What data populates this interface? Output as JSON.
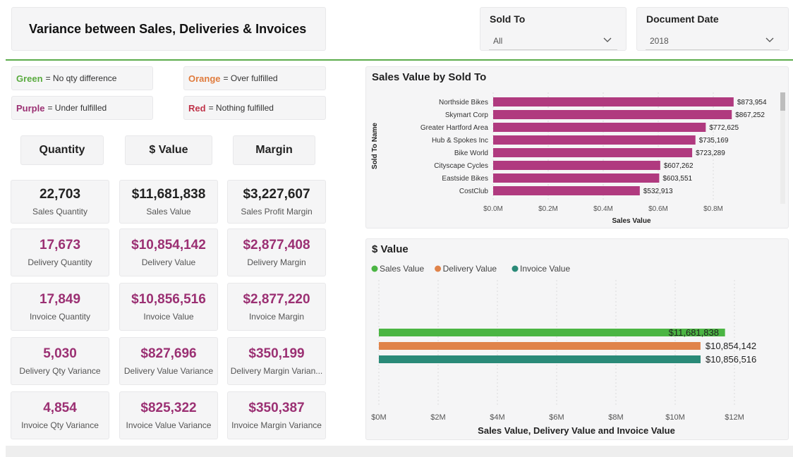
{
  "header": {
    "title": "Variance between Sales, Deliveries & Invoices"
  },
  "filters": {
    "sold_to": {
      "label": "Sold To",
      "value": "All"
    },
    "document_date": {
      "label": "Document Date",
      "value": "2018"
    }
  },
  "legend": [
    {
      "color_name": "Green",
      "text": "= No qty difference",
      "color": "#5aab3f"
    },
    {
      "color_name": "Orange",
      "text": "= Over fulfilled",
      "color": "#e07c3e"
    },
    {
      "color_name": "Purple",
      "text": "= Under fulfilled",
      "color": "#9b3073"
    },
    {
      "color_name": "Red",
      "text": "= Nothing fulfilled",
      "color": "#c0344a"
    }
  ],
  "column_headers": {
    "quantity": "Quantity",
    "value": "$ Value",
    "margin": "Margin"
  },
  "kpis": {
    "sales_quantity": {
      "value": "22,703",
      "label": "Sales Quantity"
    },
    "sales_value": {
      "value": "$11,681,838",
      "label": "Sales Value"
    },
    "sales_margin": {
      "value": "$3,227,607",
      "label": "Sales Profit Margin"
    },
    "delivery_quantity": {
      "value": "17,673",
      "label": "Delivery Quantity"
    },
    "delivery_value": {
      "value": "$10,854,142",
      "label": "Delivery Value"
    },
    "delivery_margin": {
      "value": "$2,877,408",
      "label": "Delivery Margin"
    },
    "invoice_quantity": {
      "value": "17,849",
      "label": "Invoice Quantity"
    },
    "invoice_value": {
      "value": "$10,856,516",
      "label": "Invoice Value"
    },
    "invoice_margin": {
      "value": "$2,877,220",
      "label": "Invoice Margin"
    },
    "delivery_qty_variance": {
      "value": "5,030",
      "label": "Delivery Qty Variance"
    },
    "delivery_value_variance": {
      "value": "$827,696",
      "label": "Delivery Value Variance"
    },
    "delivery_margin_variance": {
      "value": "$350,199",
      "label": "Delivery Margin Varian..."
    },
    "invoice_qty_variance": {
      "value": "4,854",
      "label": "Invoice Qty Variance"
    },
    "invoice_value_variance": {
      "value": "$825,322",
      "label": "Invoice Value Variance"
    },
    "invoice_margin_variance": {
      "value": "$350,387",
      "label": "Invoice Margin Variance"
    }
  },
  "chart_data": [
    {
      "type": "bar",
      "orientation": "horizontal",
      "title": "Sales Value by Sold To",
      "xlabel": "Sales Value",
      "ylabel": "Sold To Name",
      "categories": [
        "Northside Bikes",
        "Skymart Corp",
        "Greater Hartford Area",
        "Hub & Spokes Inc",
        "Bike World",
        "Cityscape Cycles",
        "Eastside Bikes",
        "CostClub"
      ],
      "values": [
        873954,
        867252,
        772625,
        735169,
        723289,
        607262,
        603551,
        532913
      ],
      "data_labels": [
        "$873,954",
        "$867,252",
        "$772,625",
        "$735,169",
        "$723,289",
        "$607,262",
        "$603,551",
        "$532,913"
      ],
      "xlim": [
        0,
        1000000
      ],
      "xticks": [
        0,
        200000,
        400000,
        600000,
        800000
      ],
      "xtick_labels": [
        "$0.0M",
        "$0.2M",
        "$0.4M",
        "$0.6M",
        "$0.8M"
      ],
      "color": "#b03a7f"
    },
    {
      "type": "bar",
      "orientation": "horizontal",
      "title": "$ Value",
      "xlabel": "Sales Value, Delivery Value and Invoice Value",
      "series": [
        {
          "name": "Sales Value",
          "values": [
            11681838
          ],
          "label": "$11,681,838",
          "color": "#4bb543"
        },
        {
          "name": "Delivery Value",
          "values": [
            10854142
          ],
          "label": "$10,854,142",
          "color": "#e0834a"
        },
        {
          "name": "Invoice Value",
          "values": [
            10856516
          ],
          "label": "$10,856,516",
          "color": "#2a8a78"
        }
      ],
      "xlim": [
        0,
        12000000
      ],
      "xticks": [
        0,
        2000000,
        4000000,
        6000000,
        8000000,
        10000000,
        12000000
      ],
      "xtick_labels": [
        "$0M",
        "$2M",
        "$4M",
        "$6M",
        "$8M",
        "$10M",
        "$12M"
      ]
    }
  ]
}
